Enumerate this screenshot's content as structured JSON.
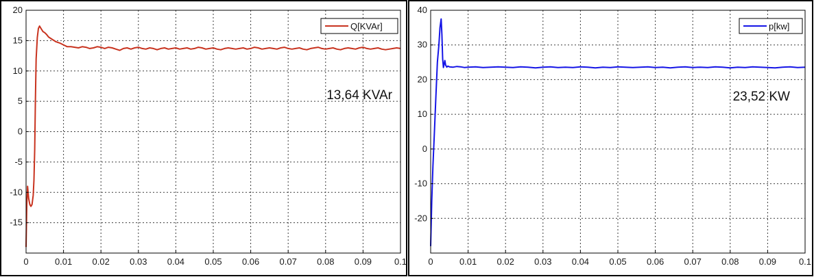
{
  "colors": {
    "q_series": "#c8321e",
    "p_series": "#1414e6",
    "grid": "#3a3a3a",
    "frame": "#000000"
  },
  "chart_data": [
    {
      "type": "line",
      "title": "",
      "xlabel": "",
      "ylabel": "",
      "xlim": [
        0,
        0.1
      ],
      "ylim": [
        -20,
        20
      ],
      "grid": true,
      "legend": "top-right",
      "xticks": [
        0,
        0.01,
        0.02,
        0.03,
        0.04,
        0.05,
        0.06,
        0.07,
        0.08,
        0.09,
        0.1
      ],
      "xtick_labels": [
        "0",
        "0.01",
        "0.02",
        "0.03",
        "0.04",
        "0.05",
        "0.06",
        "0.07",
        "0.08",
        "0.09",
        "0.1"
      ],
      "yticks": [
        -15,
        -10,
        -5,
        0,
        5,
        10,
        15,
        20
      ],
      "ytick_labels": [
        "-15",
        "-10",
        "-5",
        "0",
        "5",
        "10",
        "15",
        "20"
      ],
      "annotation": "13,64 KVAr",
      "series": [
        {
          "name": "Q[KVAr]",
          "color": "#c8321e",
          "x": [
            0,
            0.0002,
            0.0004,
            0.0007,
            0.001,
            0.0013,
            0.0016,
            0.0019,
            0.0021,
            0.0023,
            0.0025,
            0.0027,
            0.003,
            0.0033,
            0.0036,
            0.004,
            0.0045,
            0.005,
            0.0055,
            0.006,
            0.007,
            0.008,
            0.009,
            0.01,
            0.011,
            0.012,
            0.013,
            0.014,
            0.015,
            0.016,
            0.017,
            0.018,
            0.019,
            0.02,
            0.021,
            0.022,
            0.023,
            0.024,
            0.025,
            0.026,
            0.027,
            0.028,
            0.029,
            0.03,
            0.031,
            0.032,
            0.033,
            0.034,
            0.035,
            0.036,
            0.037,
            0.038,
            0.039,
            0.04,
            0.041,
            0.042,
            0.043,
            0.044,
            0.045,
            0.046,
            0.047,
            0.048,
            0.049,
            0.05,
            0.051,
            0.052,
            0.053,
            0.054,
            0.055,
            0.056,
            0.057,
            0.058,
            0.059,
            0.06,
            0.061,
            0.062,
            0.063,
            0.064,
            0.065,
            0.066,
            0.067,
            0.068,
            0.069,
            0.07,
            0.071,
            0.072,
            0.073,
            0.074,
            0.075,
            0.076,
            0.077,
            0.078,
            0.079,
            0.08,
            0.081,
            0.082,
            0.083,
            0.084,
            0.085,
            0.086,
            0.087,
            0.088,
            0.089,
            0.09,
            0.091,
            0.092,
            0.093,
            0.094,
            0.095,
            0.096,
            0.097,
            0.098,
            0.099,
            0.1
          ],
          "y": [
            -19,
            -12,
            -9,
            -11,
            -12,
            -12.3,
            -12,
            -10.5,
            -8,
            -3,
            5,
            12,
            15.5,
            17,
            17.4,
            17,
            16.5,
            16.3,
            16,
            15.6,
            15.2,
            14.8,
            14.6,
            14.3,
            14,
            14,
            13.9,
            13.8,
            14,
            13.9,
            13.7,
            13.8,
            14,
            13.9,
            13.7,
            13.9,
            13.8,
            13.6,
            13.4,
            13.7,
            13.8,
            13.6,
            13.8,
            13.9,
            13.7,
            13.6,
            13.8,
            13.7,
            13.5,
            13.7,
            13.8,
            13.6,
            13.7,
            13.8,
            13.6,
            13.7,
            13.8,
            13.6,
            13.7,
            13.9,
            13.8,
            13.6,
            13.7,
            13.8,
            13.6,
            13.5,
            13.7,
            13.8,
            13.7,
            13.6,
            13.7,
            13.8,
            13.6,
            13.7,
            13.9,
            13.8,
            13.6,
            13.7,
            13.8,
            13.7,
            13.6,
            13.8,
            13.9,
            13.7,
            13.6,
            13.7,
            13.8,
            13.6,
            13.5,
            13.7,
            13.8,
            13.9,
            13.7,
            13.6,
            13.7,
            13.8,
            13.6,
            13.5,
            13.7,
            13.8,
            13.7,
            13.6,
            13.8,
            13.9,
            13.7,
            13.6,
            13.7,
            13.8,
            13.6,
            13.5,
            13.6,
            13.7,
            13.8,
            13.7
          ]
        }
      ]
    },
    {
      "type": "line",
      "title": "",
      "xlabel": "",
      "ylabel": "",
      "xlim": [
        0,
        0.1
      ],
      "ylim": [
        -30,
        40
      ],
      "grid": true,
      "legend": "top-right",
      "xticks": [
        0,
        0.01,
        0.02,
        0.03,
        0.04,
        0.05,
        0.06,
        0.07,
        0.08,
        0.09,
        0.1
      ],
      "xtick_labels": [
        "0",
        "0.01",
        "0.02",
        "0.03",
        "0.04",
        "0.05",
        "0.06",
        "0.07",
        "0.08",
        "0.09",
        "0.1"
      ],
      "yticks": [
        -20,
        -10,
        0,
        10,
        20,
        30,
        40
      ],
      "ytick_labels": [
        "-20",
        "-10",
        "0",
        "10",
        "20",
        "30",
        "40"
      ],
      "annotation": "23,52 KW",
      "series": [
        {
          "name": "p[kw]",
          "color": "#1414e6",
          "x": [
            0,
            0.0003,
            0.0006,
            0.001,
            0.0014,
            0.0018,
            0.0022,
            0.0025,
            0.0028,
            0.003,
            0.0032,
            0.0034,
            0.0036,
            0.0038,
            0.004,
            0.0043,
            0.0046,
            0.005,
            0.006,
            0.007,
            0.008,
            0.009,
            0.01,
            0.012,
            0.014,
            0.016,
            0.018,
            0.02,
            0.022,
            0.024,
            0.026,
            0.028,
            0.03,
            0.032,
            0.034,
            0.036,
            0.038,
            0.04,
            0.042,
            0.044,
            0.046,
            0.048,
            0.05,
            0.052,
            0.054,
            0.056,
            0.058,
            0.06,
            0.062,
            0.064,
            0.066,
            0.068,
            0.07,
            0.072,
            0.074,
            0.076,
            0.078,
            0.08,
            0.082,
            0.084,
            0.086,
            0.088,
            0.09,
            0.092,
            0.094,
            0.096,
            0.098,
            0.1
          ],
          "y": [
            -28,
            -15,
            -5,
            5,
            15,
            25,
            30,
            35,
            37.5,
            33,
            26,
            23.5,
            24.5,
            25.5,
            24.2,
            23.6,
            23.9,
            23.7,
            23.6,
            23.8,
            23.7,
            23.5,
            23.6,
            23.7,
            23.5,
            23.6,
            23.7,
            23.6,
            23.5,
            23.7,
            23.6,
            23.4,
            23.6,
            23.7,
            23.5,
            23.6,
            23.5,
            23.7,
            23.6,
            23.4,
            23.6,
            23.5,
            23.7,
            23.6,
            23.5,
            23.6,
            23.7,
            23.5,
            23.6,
            23.4,
            23.6,
            23.7,
            23.5,
            23.6,
            23.5,
            23.7,
            23.6,
            23.4,
            23.6,
            23.5,
            23.7,
            23.6,
            23.5,
            23.4,
            23.6,
            23.7,
            23.5,
            23.6
          ]
        }
      ]
    }
  ]
}
